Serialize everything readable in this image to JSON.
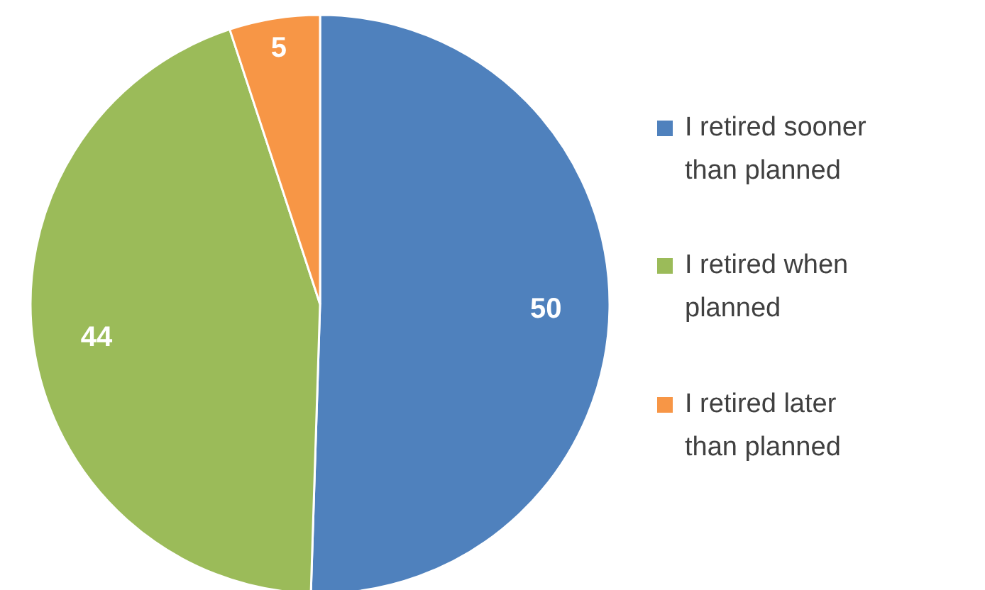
{
  "chart_data": {
    "type": "pie",
    "categories": [
      "I retired sooner than planned",
      "I retired when planned",
      "I retired later than planned"
    ],
    "values": [
      50,
      44,
      5
    ],
    "colors": [
      "#4f81bd",
      "#9bbb59",
      "#f79646"
    ],
    "data_labels": true,
    "legend": "right"
  }
}
